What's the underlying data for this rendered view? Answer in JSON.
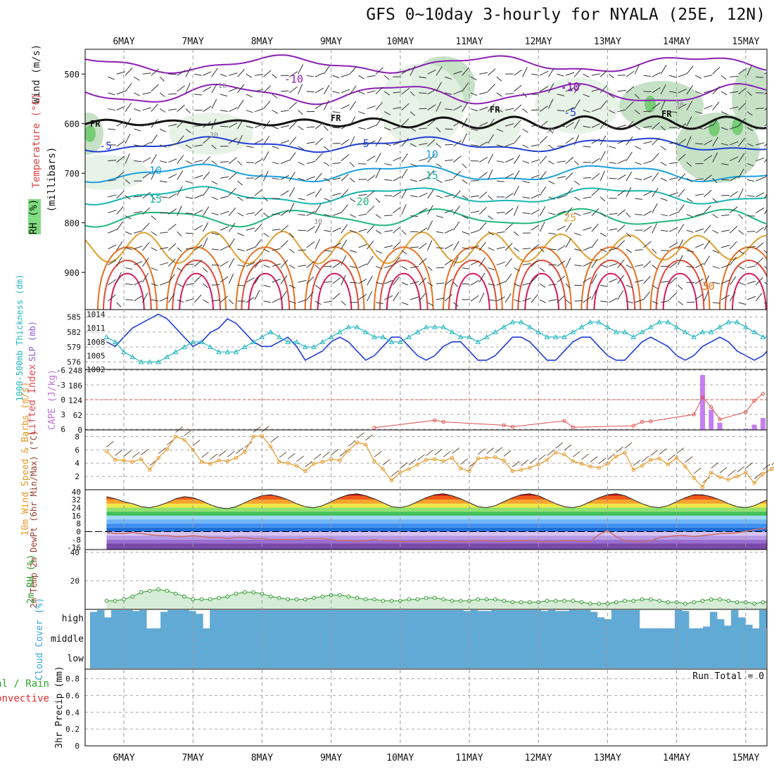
{
  "title": "GFS 0~10day 3-hourly for NYALA (25E, 12N)",
  "dates": [
    "6MAY",
    "7MAY",
    "8MAY",
    "9MAY",
    "10MAY",
    "11MAY",
    "12MAY",
    "13MAY",
    "14MAY",
    "15MAY"
  ],
  "colors": {
    "wind_label": "#222222",
    "temp_label": "#e04040",
    "slp_line": "#1f3ed6",
    "thickness_line": "#26b8c0",
    "lifted_index": "#e05050",
    "cape_bar": "#c57ef0",
    "wind_speed": "#e69a2c",
    "rh2m": "#2a9a2a",
    "rh2m_fill": "#d7ecd7",
    "cloud": "#62aad6",
    "cloud_label": "#3aa6d8",
    "precip_label_green": "#2ea62e",
    "precip_label_red": "#e03030"
  },
  "chart_data": [
    {
      "panel": "upper_air",
      "type": "contour",
      "ylabel_parts": [
        "Wind (m/s)",
        "Temperature (°C)",
        "RH (%)"
      ],
      "y_axis_label": "(millibars)",
      "yticks": [
        "500",
        "600",
        "700",
        "800",
        "900"
      ],
      "ylim": [
        450,
        975
      ],
      "temperature_contour_labels": [
        {
          "label": "-10",
          "date": "8MAY",
          "p": 510
        },
        {
          "label": "-10",
          "date": "12MAY",
          "p": 525
        },
        {
          "label": "-5",
          "date": "12MAY",
          "p": 578
        },
        {
          "label": "-5",
          "date": "5MAY",
          "p": 645
        },
        {
          "label": "-5",
          "date": "9MAY",
          "p": 640
        },
        {
          "label": "-10",
          "date": "12MAY",
          "p": 527
        },
        {
          "label": "10",
          "date": "6MAY",
          "p": 695
        },
        {
          "label": "10",
          "date": "10MAY",
          "p": 662
        },
        {
          "label": "15",
          "date": "6MAY",
          "p": 752
        },
        {
          "label": "15",
          "date": "10MAY",
          "p": 705
        },
        {
          "label": "20",
          "date": "9MAY",
          "p": 757
        },
        {
          "label": "25",
          "date": "12MAY",
          "p": 790
        },
        {
          "label": "30",
          "date": "14MAY",
          "p": 928
        }
      ],
      "rh_contour_labels": [
        "10",
        "30",
        "30",
        "30",
        "10"
      ],
      "freezing_level_label": "FR",
      "freezing_level_mb": 598
    },
    {
      "panel": "slp_thickness",
      "type": "line",
      "ylabel_left": "1000-500mb Thickness (dm)",
      "ylabel_right": "SLP (mb)",
      "left_ticks": [
        "585",
        "582",
        "579",
        "576"
      ],
      "right_ticks": [
        "1014",
        "1011",
        "1008",
        "1005",
        "1002"
      ],
      "series": [
        {
          "name": "SLP (mb)",
          "values": [
            1008,
            1007,
            1009,
            1011,
            1012,
            1013,
            1014,
            1013,
            1011,
            1009,
            1007,
            1008,
            1010,
            1011,
            1013,
            1012,
            1010,
            1008,
            1007,
            1007,
            1008,
            1009,
            1007,
            1004,
            1005,
            1006,
            1008,
            1009,
            1008,
            1006,
            1004,
            1005,
            1007,
            1009,
            1009,
            1007,
            1005,
            1004,
            1005,
            1007,
            1008,
            1008,
            1006,
            1004,
            1004,
            1005,
            1007,
            1009,
            1009,
            1008,
            1006,
            1004,
            1004,
            1006,
            1008,
            1009,
            1009,
            1007,
            1005,
            1004,
            1004,
            1006,
            1008,
            1009,
            1008,
            1007,
            1005,
            1004,
            1005,
            1007,
            1008,
            1009,
            1008,
            1006,
            1005,
            1004,
            1005,
            1007,
            1008,
            1009,
            1009,
            1007,
            1005,
            1004,
            1004,
            1005,
            1007,
            1008,
            1008
          ]
        },
        {
          "name": "Thickness (dm)",
          "values": [
            581,
            580,
            578,
            577,
            576,
            576,
            576,
            577,
            578,
            579,
            580,
            580,
            579,
            578,
            578,
            578,
            579,
            580,
            581,
            582,
            581,
            580,
            580,
            579,
            579,
            580,
            581,
            582,
            583,
            583,
            582,
            581,
            581,
            580,
            580,
            581,
            582,
            583,
            583,
            583,
            582,
            581,
            581,
            580,
            581,
            582,
            583,
            584,
            584,
            583,
            582,
            581,
            581,
            581,
            582,
            583,
            584,
            584,
            583,
            582,
            582,
            581,
            582,
            583,
            584,
            584,
            583,
            582,
            581,
            582,
            582,
            583,
            584,
            584,
            583,
            582,
            581,
            581,
            582,
            583,
            584,
            584,
            583,
            582,
            582,
            582,
            582,
            583,
            582
          ]
        }
      ]
    },
    {
      "panel": "stability",
      "type": "bar",
      "ylabel_left": "Lifted Index",
      "ylabel_right": "CAPE (J/kg)",
      "left_ticks": [
        "-6",
        "-3",
        "0",
        "3",
        "6"
      ],
      "right_ticks": [
        "248",
        "186",
        "124",
        "62",
        "0"
      ],
      "cape_bars": [
        {
          "date": "14MAY",
          "offset_h": 9,
          "value": 230
        },
        {
          "date": "14MAY",
          "offset_h": 12,
          "value": 85
        },
        {
          "date": "14MAY",
          "offset_h": 15,
          "value": 30
        },
        {
          "date": "15MAY",
          "offset_h": 0,
          "value": 6
        },
        {
          "date": "15MAY",
          "offset_h": 3,
          "value": 22
        },
        {
          "date": "15MAY",
          "offset_h": 6,
          "value": 50
        }
      ],
      "lifted_index_visible": [
        {
          "date": "9MAY",
          "offset_h": 15,
          "value": 5.7
        },
        {
          "date": "10MAY",
          "offset_h": 12,
          "value": 4.2
        },
        {
          "date": "10MAY",
          "offset_h": 15,
          "value": 4.5
        },
        {
          "date": "11MAY",
          "offset_h": 12,
          "value": 5.2
        },
        {
          "date": "11MAY",
          "offset_h": 15,
          "value": 5.5
        },
        {
          "date": "12MAY",
          "offset_h": 9,
          "value": 4.3
        },
        {
          "date": "12MAY",
          "offset_h": 12,
          "value": 5.6
        },
        {
          "date": "13MAY",
          "offset_h": 9,
          "value": 5.3
        },
        {
          "date": "13MAY",
          "offset_h": 12,
          "value": 4.5
        },
        {
          "date": "13MAY",
          "offset_h": 15,
          "value": 4.4
        },
        {
          "date": "14MAY",
          "offset_h": 6,
          "value": 3.0
        },
        {
          "date": "14MAY",
          "offset_h": 9,
          "value": -0.5
        },
        {
          "date": "14MAY",
          "offset_h": 12,
          "value": 1.5
        },
        {
          "date": "14MAY",
          "offset_h": 15,
          "value": 4.0
        },
        {
          "date": "15MAY",
          "offset_h": 0,
          "value": 2.5
        },
        {
          "date": "15MAY",
          "offset_h": 3,
          "value": 0.2
        },
        {
          "date": "15MAY",
          "offset_h": 6,
          "value": -1.2
        }
      ]
    },
    {
      "panel": "wind10m",
      "type": "line",
      "ylabel": "10m Wind Speed & Barbs (m/s)",
      "yticks": [
        "8",
        "6",
        "4",
        "2"
      ],
      "ylim": [
        0,
        9
      ],
      "series": [
        {
          "name": "Speed",
          "values": [
            5.8,
            4.5,
            4.4,
            4.2,
            4.6,
            3.0,
            4.8,
            6.1,
            8.0,
            7.5,
            6.0,
            4.2,
            3.9,
            4.4,
            4.3,
            4.8,
            5.7,
            8.0,
            8.1,
            6.5,
            4.2,
            4.0,
            3.6,
            2.8,
            3.9,
            4.2,
            4.6,
            4.4,
            5.9,
            7.1,
            6.8,
            4.3,
            3.1,
            1.4,
            2.6,
            3.1,
            3.8,
            4.5,
            4.6,
            4.3,
            4.8,
            3.2,
            2.8,
            4.7,
            4.8,
            4.9,
            4.4,
            2.8,
            3.0,
            3.3,
            3.8,
            4.5,
            5.6,
            5.3,
            4.3,
            3.9,
            3.5,
            3.3,
            3.9,
            5.0,
            5.6,
            3.0,
            3.6,
            4.5,
            4.7,
            3.8,
            4.8,
            3.5,
            1.8,
            0.4,
            2.6,
            1.9,
            1.5,
            2.0,
            2.6,
            1.0,
            2.4,
            3.1,
            4.2,
            4.1,
            3.9,
            3.4,
            3.5,
            3.9,
            4.8,
            5.0,
            4.0,
            3.5,
            2.6
          ]
        }
      ]
    },
    {
      "panel": "temp2m",
      "type": "area",
      "ylabel": "2m Temp 2m DewPt (6hr Min/Max) (°C)",
      "yticks": [
        "40",
        "32",
        "24",
        "16",
        "8",
        "0",
        "-8",
        "-16"
      ],
      "ylim": [
        -16,
        40
      ],
      "series": [
        {
          "name": "2m Temp",
          "values": [
            35,
            33,
            30,
            28,
            25,
            24,
            26,
            29,
            33,
            35,
            34,
            31,
            27,
            24,
            23,
            25,
            29,
            33,
            36,
            37,
            35,
            32,
            28,
            25,
            24,
            26,
            30,
            34,
            37,
            38,
            36,
            33,
            29,
            25,
            24,
            26,
            30,
            34,
            37,
            38,
            36,
            33,
            29,
            25,
            24,
            26,
            30,
            34,
            37,
            38,
            36,
            32,
            28,
            25,
            24,
            26,
            30,
            34,
            37,
            38,
            36,
            32,
            28,
            25,
            24,
            26,
            30,
            34,
            37,
            37,
            35,
            32,
            28,
            25,
            24,
            26,
            30,
            34,
            37,
            38,
            36,
            32,
            28,
            26,
            26,
            27,
            30,
            31,
            29
          ]
        },
        {
          "name": "2m DewPt",
          "values": [
            -1,
            -2,
            -2,
            -1,
            -2,
            -3,
            -4,
            -4,
            -5,
            -5,
            -4,
            -5,
            -6,
            -6,
            -7,
            -6,
            -6,
            -7,
            -7,
            -8,
            -8,
            -8,
            -8,
            -7,
            -7,
            -7,
            -8,
            -9,
            -9,
            -10,
            -9,
            -8,
            -9,
            -9,
            -10,
            -10,
            -10,
            -10,
            -9,
            -9,
            -10,
            -10,
            -10,
            -9,
            -9,
            -10,
            -10,
            -9,
            -9,
            -9,
            -10,
            -10,
            -10,
            -9,
            -9,
            -10,
            -10,
            -3,
            1,
            -5,
            -9,
            -10,
            -10,
            -9,
            -6,
            -5,
            -4,
            -4,
            -5,
            -4,
            -3,
            -2,
            -2,
            -1,
            0,
            2,
            3,
            4,
            6,
            7,
            6,
            5,
            4,
            5,
            8,
            9,
            10,
            10,
            10
          ]
        }
      ]
    },
    {
      "panel": "rh2m",
      "type": "area",
      "ylabel": "2m RH (%)",
      "yticks": [
        "40",
        "20"
      ],
      "ylim": [
        0,
        40
      ],
      "series": [
        {
          "name": "2m RH",
          "values": [
            6,
            6,
            7,
            9,
            12,
            13,
            14,
            13,
            11,
            9,
            7,
            7,
            7,
            8,
            9,
            11,
            12,
            12,
            11,
            9,
            8,
            7,
            7,
            7,
            8,
            9,
            10,
            10,
            9,
            8,
            7,
            7,
            6,
            6,
            6,
            7,
            7,
            8,
            8,
            7,
            6,
            6,
            6,
            7,
            7,
            7,
            6,
            5,
            5,
            5,
            5,
            6,
            6,
            6,
            6,
            5,
            4,
            4,
            4,
            5,
            6,
            6,
            7,
            7,
            6,
            5,
            5,
            4,
            5,
            6,
            7,
            7,
            6,
            5,
            5,
            4,
            5,
            6,
            7,
            8,
            9,
            13,
            19,
            23,
            24,
            22,
            18,
            14,
            13,
            15,
            22,
            33,
            38,
            30
          ]
        }
      ]
    },
    {
      "panel": "cloud_cover",
      "type": "bar",
      "ylabel": "Cloud Cover (%)",
      "levels": [
        "high",
        "middle",
        "low"
      ],
      "high_values": [
        90,
        100,
        60,
        100,
        100,
        100,
        95,
        100,
        0,
        0,
        90,
        100,
        100,
        100,
        95,
        80,
        0,
        100,
        100,
        100,
        100,
        100,
        100,
        100,
        100,
        100,
        100,
        100,
        100,
        100,
        100,
        100,
        100,
        100,
        100,
        100,
        100,
        100,
        100,
        100,
        100,
        100,
        100,
        100,
        100,
        100,
        100,
        100,
        100,
        100,
        100,
        100,
        100,
        95,
        100,
        95,
        95,
        100,
        100,
        100,
        100,
        100,
        100,
        100,
        95,
        100,
        95,
        95,
        100,
        100,
        100,
        90,
        60,
        50,
        100,
        100,
        100,
        100,
        0,
        0,
        0,
        0,
        0,
        100,
        95,
        0,
        0,
        10,
        90,
        50,
        15,
        100,
        60,
        20,
        0,
        100
      ],
      "middle_values": "100 throughout",
      "low_values": "100 throughout"
    },
    {
      "panel": "precip",
      "type": "bar",
      "ylabel": "3hr Precip (mm)",
      "legend": [
        "Total / Rain",
        "Convective"
      ],
      "yticks": [
        "0.8",
        "0.6",
        "0.4",
        "0.2",
        "0"
      ],
      "ylim": [
        0,
        0.9
      ],
      "run_total": "Run Total = 0",
      "values": []
    }
  ]
}
